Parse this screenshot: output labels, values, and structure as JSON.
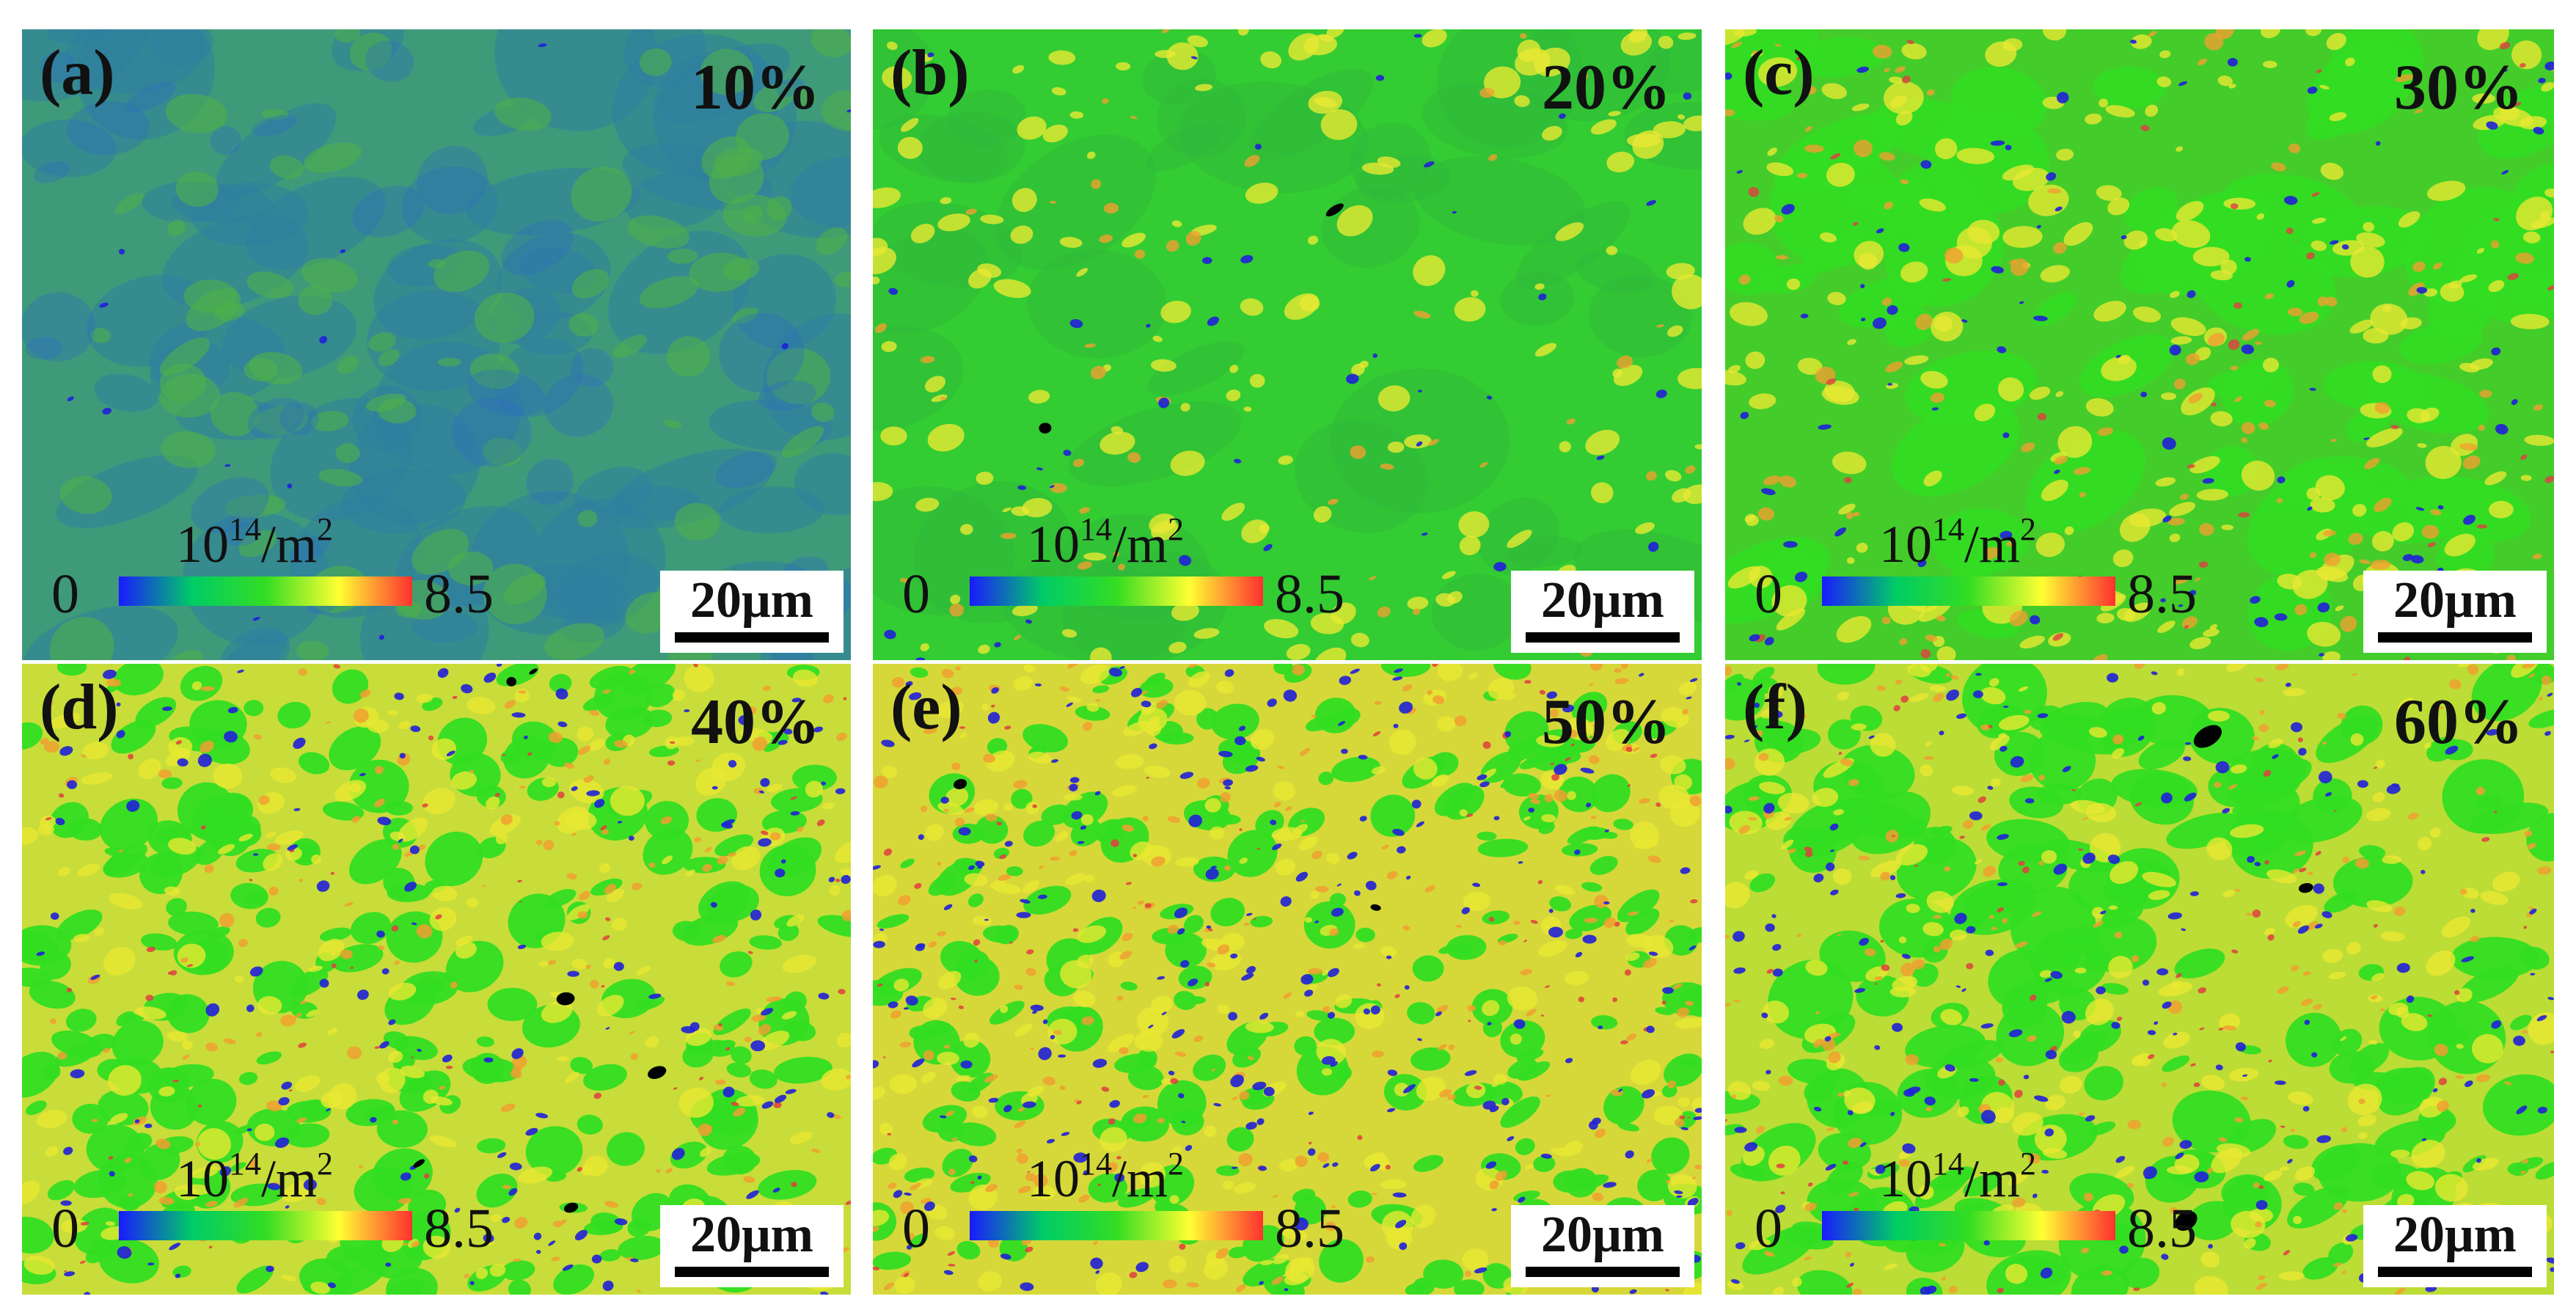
{
  "figure": {
    "panels": [
      {
        "label": "(a)",
        "strain": "10%",
        "scale_bar": "20μm",
        "colorbar": {
          "min": "0",
          "max": "8.5",
          "unit_base": "10",
          "unit_exp": "14",
          "unit_rest": "/m",
          "unit_exp2": "2"
        }
      },
      {
        "label": "(b)",
        "strain": "20%",
        "scale_bar": "20μm",
        "colorbar": {
          "min": "0",
          "max": "8.5",
          "unit_base": "10",
          "unit_exp": "14",
          "unit_rest": "/m",
          "unit_exp2": "2"
        }
      },
      {
        "label": "(c)",
        "strain": "30%",
        "scale_bar": "20μm",
        "colorbar": {
          "min": "0",
          "max": "8.5",
          "unit_base": "10",
          "unit_exp": "14",
          "unit_rest": "/m",
          "unit_exp2": "2"
        }
      },
      {
        "label": "(d)",
        "strain": "40%",
        "scale_bar": "20μm",
        "colorbar": {
          "min": "0",
          "max": "8.5",
          "unit_base": "10",
          "unit_exp": "14",
          "unit_rest": "/m",
          "unit_exp2": "2"
        }
      },
      {
        "label": "(e)",
        "strain": "50%",
        "scale_bar": "20μm",
        "colorbar": {
          "min": "0",
          "max": "8.5",
          "unit_base": "10",
          "unit_exp": "14",
          "unit_rest": "/m",
          "unit_exp2": "2"
        }
      },
      {
        "label": "(f)",
        "strain": "60%",
        "scale_bar": "20μm",
        "colorbar": {
          "min": "0",
          "max": "8.5",
          "unit_base": "10",
          "unit_exp": "14",
          "unit_rest": "/m",
          "unit_exp2": "2"
        }
      }
    ],
    "colors": {
      "base_a": "#3f9a7a",
      "base_other": "#33cc33",
      "green": "#33dd22",
      "yellow": "#e8e832",
      "orange": "#f0a030",
      "red": "#e04040",
      "blue": "#2020d8",
      "black": "#000000",
      "colorbar_stops": [
        "#1a1aff",
        "#00cc66",
        "#33dd22",
        "#ffff33",
        "#ff3030"
      ]
    }
  }
}
